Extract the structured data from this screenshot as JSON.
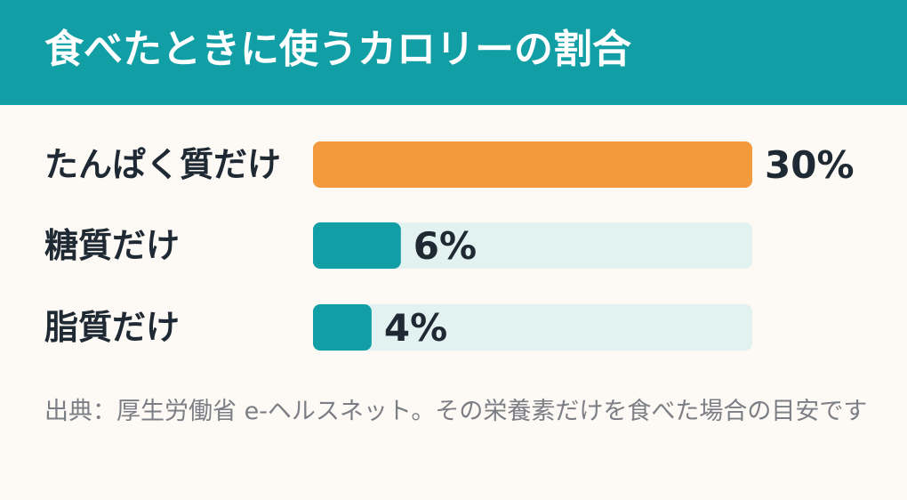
{
  "chart_data": {
    "type": "bar",
    "orientation": "horizontal",
    "title": "食べたときに使うカロリーの割合",
    "categories": [
      "たんぱく質だけ",
      "糖質だけ",
      "脂質だけ"
    ],
    "values": [
      30,
      6,
      4
    ],
    "value_labels": [
      "30%",
      "6%",
      "4%"
    ],
    "xlim": [
      0,
      30
    ],
    "grid": false,
    "legend": "none",
    "bar_colors": [
      "#f39a3c",
      "#119ea4",
      "#119ea4"
    ],
    "track_color": "#e2f2f1",
    "header_color": "#119ea4",
    "note": "出典：厚生労働省 e-ヘルスネット。その栄養素だけを食べた場合の目安です"
  }
}
